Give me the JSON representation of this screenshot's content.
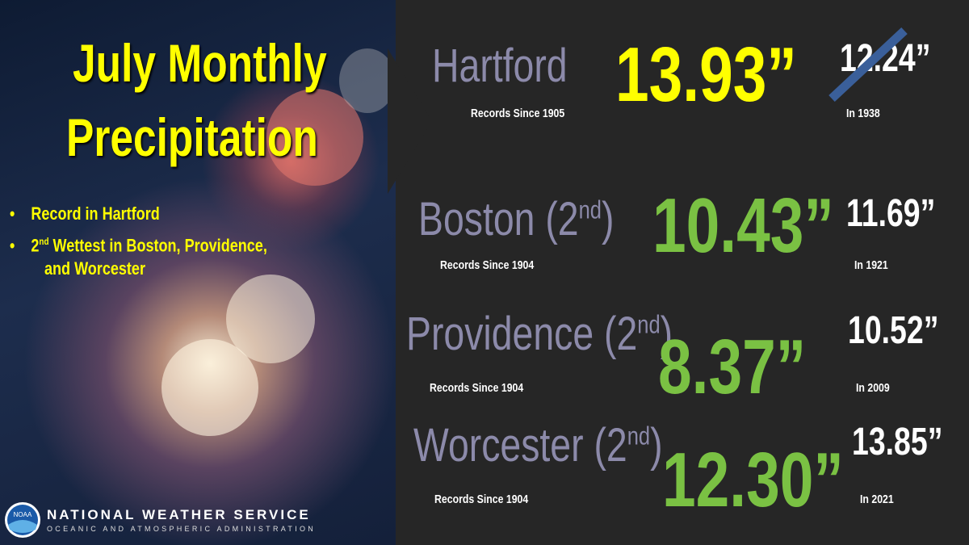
{
  "title": {
    "line1": "July Monthly",
    "line2": "Precipitation"
  },
  "bullets": [
    {
      "text": "Record in Hartford"
    },
    {
      "prefix": "2",
      "sup": "nd",
      "rest": " Wettest in Boston, Providence,",
      "rest2": "and Worcester"
    }
  ],
  "cities": [
    {
      "name": "Hartford",
      "since": "Records Since 1905",
      "value": "13.93”",
      "prior": "12.24”",
      "prior_year": "In 1938"
    },
    {
      "name": "Boston (2",
      "sup": "nd",
      "close": ")",
      "since": "Records Since 1904",
      "value": "10.43”",
      "prior": "11.69”",
      "prior_year": "In 1921"
    },
    {
      "name": "Providence (2",
      "sup": "nd",
      "close": ")",
      "since": "Records Since 1904",
      "value": "8.37”",
      "prior": "10.52”",
      "prior_year": "In 2009"
    },
    {
      "name": "Worcester (2",
      "sup": "nd",
      "close": ")",
      "since": "Records Since 1904",
      "value": "12.30”",
      "prior": "13.85”",
      "prior_year": "In 2021"
    }
  ],
  "footer": {
    "logo": "NOAA",
    "line1": "NATIONAL WEATHER SERVICE",
    "line2": "OCEANIC AND ATMOSPHERIC ADMINISTRATION"
  }
}
